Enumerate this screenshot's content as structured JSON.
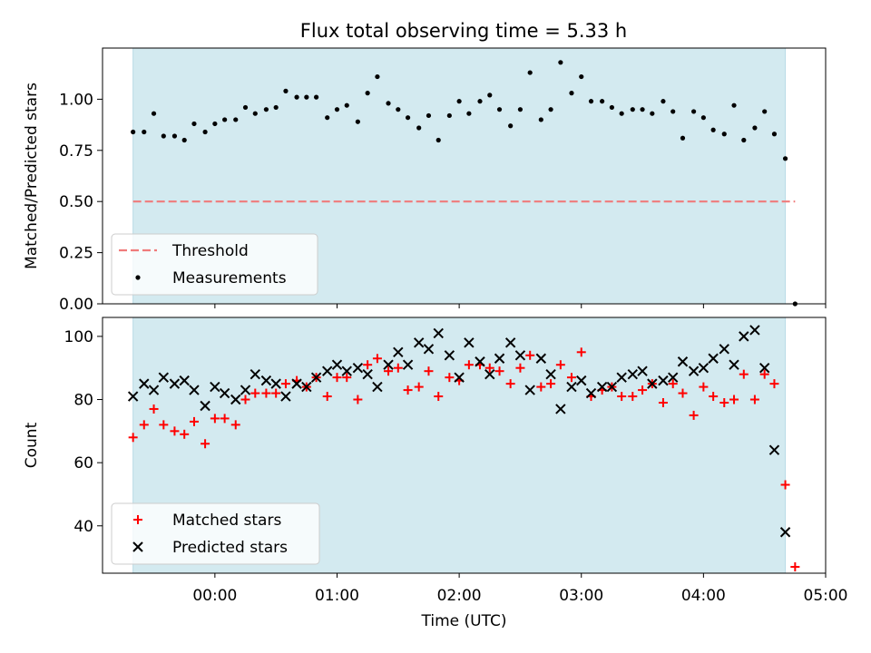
{
  "title": "Flux total observing time = 5.33 h",
  "colors": {
    "observing_span": "#d3eaf0",
    "threshold": "#f07b7b",
    "measurements": "#000000",
    "matched": "#ff0000",
    "predicted": "#000000"
  },
  "chart_data": [
    {
      "type": "scatter",
      "ylabel": "Matched/Predicted stars",
      "ylim": [
        0,
        1.25
      ],
      "yticks": [
        0,
        0.25,
        0.5,
        0.75,
        1.0
      ],
      "ytick_labels": [
        "0.00",
        "0.25",
        "0.50",
        "0.75",
        "1.00"
      ],
      "xlim_hours": [
        -0.92,
        5.0
      ],
      "shaded_span_hours": [
        -0.67,
        4.67
      ],
      "threshold": {
        "name": "Threshold",
        "y": 0.5,
        "x_range_hours": [
          -0.67,
          4.75
        ]
      },
      "legend": {
        "placement": "lower-left",
        "entries": [
          "Threshold",
          "Measurements"
        ]
      },
      "series": [
        {
          "name": "Measurements",
          "marker": "dot",
          "x": [
            -0.67,
            -0.58,
            -0.5,
            -0.42,
            -0.33,
            -0.25,
            -0.17,
            -0.08,
            0.0,
            0.08,
            0.17,
            0.25,
            0.33,
            0.42,
            0.5,
            0.58,
            0.67,
            0.75,
            0.83,
            0.92,
            1.0,
            1.08,
            1.17,
            1.25,
            1.33,
            1.42,
            1.5,
            1.58,
            1.67,
            1.75,
            1.83,
            1.92,
            2.0,
            2.08,
            2.17,
            2.25,
            2.33,
            2.42,
            2.5,
            2.58,
            2.67,
            2.75,
            2.83,
            2.92,
            3.0,
            3.08,
            3.17,
            3.25,
            3.33,
            3.42,
            3.5,
            3.58,
            3.67,
            3.75,
            3.83,
            3.92,
            4.0,
            4.08,
            4.17,
            4.25,
            4.33,
            4.42,
            4.5,
            4.58,
            4.67,
            4.75
          ],
          "y": [
            0.84,
            0.84,
            0.93,
            0.82,
            0.82,
            0.8,
            0.88,
            0.84,
            0.88,
            0.9,
            0.9,
            0.96,
            0.93,
            0.95,
            0.96,
            1.04,
            1.01,
            1.01,
            1.01,
            0.91,
            0.95,
            0.97,
            0.89,
            1.03,
            1.11,
            0.98,
            0.95,
            0.91,
            0.86,
            0.92,
            0.8,
            0.92,
            0.99,
            0.93,
            0.99,
            1.02,
            0.95,
            0.87,
            0.95,
            1.13,
            0.9,
            0.95,
            1.18,
            1.03,
            1.11,
            0.99,
            0.99,
            0.96,
            0.93,
            0.95,
            0.95,
            0.93,
            0.99,
            0.94,
            0.81,
            0.94,
            0.91,
            0.85,
            0.83,
            0.97,
            0.8,
            0.86,
            0.94,
            0.83,
            0.71,
            0.0
          ]
        }
      ]
    },
    {
      "type": "scatter",
      "xlabel": "Time (UTC)",
      "ylabel": "Count",
      "ylim": [
        25,
        106
      ],
      "yticks": [
        40,
        60,
        80,
        100
      ],
      "ytick_labels": [
        "40",
        "60",
        "80",
        "100"
      ],
      "xlim_hours": [
        -0.92,
        5.0
      ],
      "xticks_hours": [
        0,
        1,
        2,
        3,
        4,
        5
      ],
      "xtick_labels": [
        "00:00",
        "01:00",
        "02:00",
        "03:00",
        "04:00",
        "05:00"
      ],
      "shaded_span_hours": [
        -0.67,
        4.67
      ],
      "legend": {
        "placement": "lower-left",
        "entries": [
          "Matched stars",
          "Predicted stars"
        ]
      },
      "series": [
        {
          "name": "Matched stars",
          "marker": "plus",
          "x": [
            -0.67,
            -0.58,
            -0.5,
            -0.42,
            -0.33,
            -0.25,
            -0.17,
            -0.08,
            0.0,
            0.08,
            0.17,
            0.25,
            0.33,
            0.42,
            0.5,
            0.58,
            0.67,
            0.75,
            0.83,
            0.92,
            1.0,
            1.08,
            1.17,
            1.25,
            1.33,
            1.42,
            1.5,
            1.58,
            1.67,
            1.75,
            1.83,
            1.92,
            2.0,
            2.08,
            2.17,
            2.25,
            2.33,
            2.42,
            2.5,
            2.58,
            2.67,
            2.75,
            2.83,
            2.92,
            3.0,
            3.08,
            3.17,
            3.25,
            3.33,
            3.42,
            3.5,
            3.58,
            3.67,
            3.75,
            3.83,
            3.92,
            4.0,
            4.08,
            4.17,
            4.25,
            4.33,
            4.42,
            4.5,
            4.58,
            4.67,
            4.75
          ],
          "y": [
            68,
            72,
            77,
            72,
            70,
            69,
            73,
            66,
            74,
            74,
            72,
            80,
            82,
            82,
            82,
            85,
            86,
            84,
            87,
            81,
            87,
            87,
            80,
            91,
            93,
            89,
            90,
            83,
            84,
            89,
            81,
            87,
            86,
            91,
            91,
            90,
            89,
            85,
            90,
            94,
            84,
            85,
            91,
            87,
            95,
            81,
            83,
            84,
            81,
            81,
            83,
            85,
            79,
            85,
            82,
            75,
            84,
            81,
            79,
            80,
            88,
            80,
            88,
            85,
            53,
            27
          ]
        },
        {
          "name": "Predicted stars",
          "marker": "x",
          "x": [
            -0.67,
            -0.58,
            -0.5,
            -0.42,
            -0.33,
            -0.25,
            -0.17,
            -0.08,
            0.0,
            0.08,
            0.17,
            0.25,
            0.33,
            0.42,
            0.5,
            0.58,
            0.67,
            0.75,
            0.83,
            0.92,
            1.0,
            1.08,
            1.17,
            1.25,
            1.33,
            1.42,
            1.5,
            1.58,
            1.67,
            1.75,
            1.83,
            1.92,
            2.0,
            2.08,
            2.17,
            2.25,
            2.33,
            2.42,
            2.5,
            2.58,
            2.67,
            2.75,
            2.83,
            2.92,
            3.0,
            3.08,
            3.17,
            3.25,
            3.33,
            3.42,
            3.5,
            3.58,
            3.67,
            3.75,
            3.83,
            3.92,
            4.0,
            4.08,
            4.17,
            4.25,
            4.33,
            4.42,
            4.5,
            4.58,
            4.67
          ],
          "y": [
            81,
            85,
            83,
            87,
            85,
            86,
            83,
            78,
            84,
            82,
            80,
            83,
            88,
            86,
            85,
            81,
            85,
            84,
            87,
            89,
            91,
            89,
            90,
            88,
            84,
            91,
            95,
            91,
            98,
            96,
            101,
            94,
            87,
            98,
            92,
            88,
            93,
            98,
            94,
            83,
            93,
            88,
            77,
            84,
            86,
            82,
            84,
            84,
            87,
            88,
            89,
            85,
            86,
            87,
            92,
            89,
            90,
            93,
            96,
            91,
            100,
            102,
            90,
            64,
            38
          ]
        }
      ]
    }
  ]
}
